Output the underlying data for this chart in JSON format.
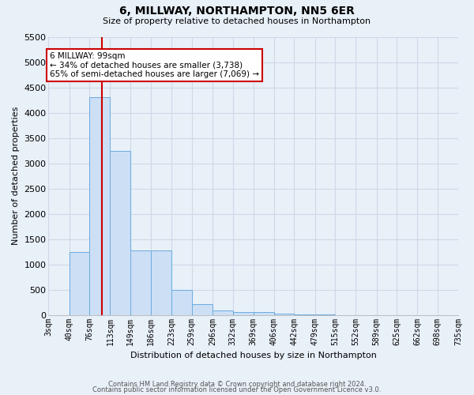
{
  "title": "6, MILLWAY, NORTHAMPTON, NN5 6ER",
  "subtitle": "Size of property relative to detached houses in Northampton",
  "xlabel": "Distribution of detached houses by size in Northampton",
  "ylabel": "Number of detached properties",
  "footnote1": "Contains HM Land Registry data © Crown copyright and database right 2024.",
  "footnote2": "Contains public sector information licensed under the Open Government Licence v3.0.",
  "annotation_title": "6 MILLWAY: 99sqm",
  "annotation_line1": "← 34% of detached houses are smaller (3,738)",
  "annotation_line2": "65% of semi-detached houses are larger (7,069) →",
  "bin_edges": [
    3,
    40,
    76,
    113,
    149,
    186,
    223,
    259,
    296,
    332,
    369,
    406,
    442,
    479,
    515,
    552,
    589,
    625,
    662,
    698,
    735
  ],
  "bar_heights": [
    0,
    1250,
    4300,
    3250,
    1280,
    1280,
    500,
    220,
    90,
    55,
    50,
    20,
    10,
    5,
    2,
    1,
    0,
    0,
    0,
    0
  ],
  "bar_color": "#ccdff5",
  "bar_edge_color": "#6aacdf",
  "vline_color": "#cc0000",
  "vline_x": 99,
  "bg_color": "#e8f0f8",
  "plot_bg_color": "#e8f0f8",
  "ylim": [
    0,
    5500
  ],
  "xlim": [
    3,
    735
  ],
  "yticks": [
    0,
    500,
    1000,
    1500,
    2000,
    2500,
    3000,
    3500,
    4000,
    4500,
    5000,
    5500
  ],
  "xtick_labels": [
    "3sqm",
    "40sqm",
    "76sqm",
    "113sqm",
    "149sqm",
    "186sqm",
    "223sqm",
    "259sqm",
    "296sqm",
    "332sqm",
    "369sqm",
    "406sqm",
    "442sqm",
    "479sqm",
    "515sqm",
    "552sqm",
    "589sqm",
    "625sqm",
    "662sqm",
    "698sqm",
    "735sqm"
  ],
  "xtick_positions": [
    3,
    40,
    76,
    113,
    149,
    186,
    223,
    259,
    296,
    332,
    369,
    406,
    442,
    479,
    515,
    552,
    589,
    625,
    662,
    698,
    735
  ],
  "annotation_box_facecolor": "#ffffff",
  "annotation_border_color": "#cc0000",
  "grid_color": "#d0d8e8",
  "title_fontsize": 10,
  "subtitle_fontsize": 8,
  "ylabel_fontsize": 8,
  "xlabel_fontsize": 8
}
